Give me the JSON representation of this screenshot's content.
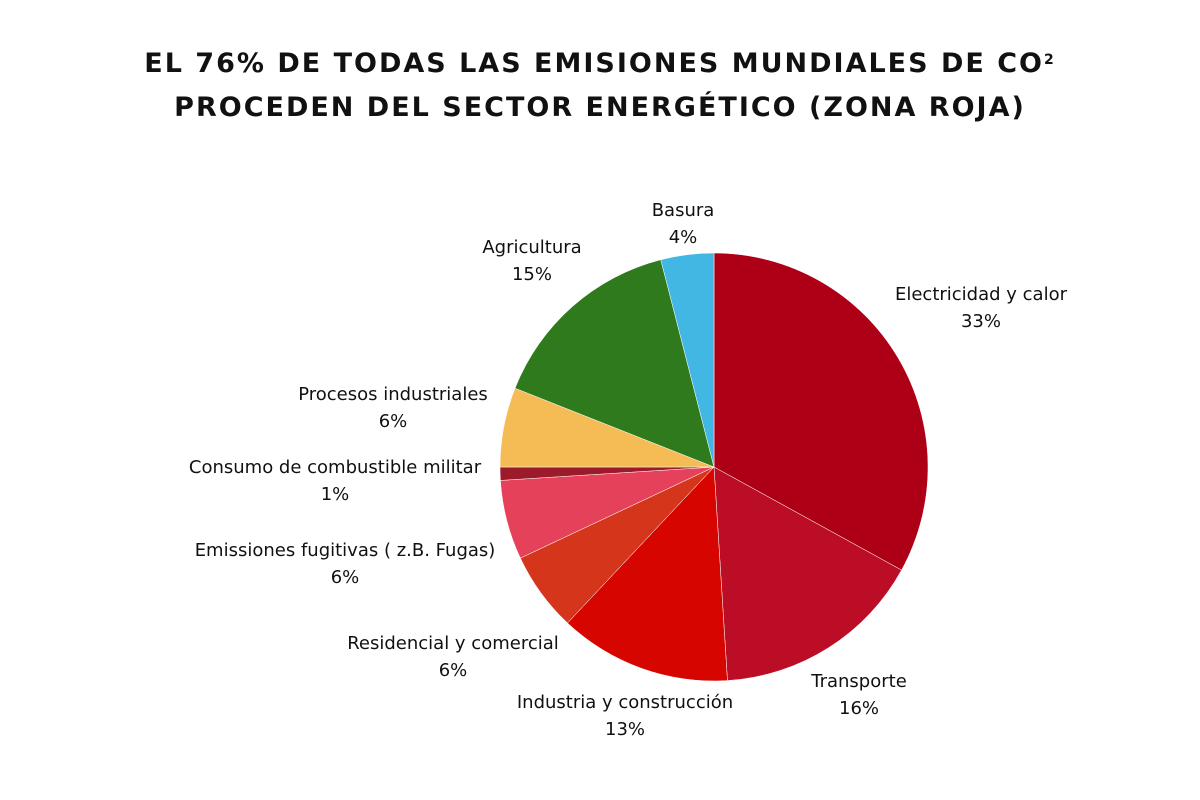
{
  "chart_data": {
    "type": "pie",
    "title": "EL 76% DE TODAS LAS EMISIONES MUNDIALES DE CO",
    "title_superscript": "2",
    "title_line2": "PROCEDEN DEL SECTOR ENERGÉTICO (ZONA ROJA)",
    "slices": [
      {
        "label": "Electricidad y calor",
        "value": 33,
        "value_label": "33%",
        "color": "#ad0016"
      },
      {
        "label": "Transporte",
        "value": 16,
        "value_label": "16%",
        "color": "#bc0d26"
      },
      {
        "label": "Industria y construcción",
        "value": 13,
        "value_label": "13%",
        "color": "#d60500"
      },
      {
        "label": "Residencial y comercial",
        "value": 6,
        "value_label": "6%",
        "color": "#d4351b"
      },
      {
        "label": "Emissiones fugitivas ( z.B. Fugas)",
        "value": 6,
        "value_label": "6%",
        "color": "#e6415a"
      },
      {
        "label": "Consumo de combustible militar",
        "value": 1,
        "value_label": "1%",
        "color": "#9c1b2b"
      },
      {
        "label": "Procesos industriales",
        "value": 6,
        "value_label": "6%",
        "color": "#f5bc56"
      },
      {
        "label": "Agricultura",
        "value": 15,
        "value_label": "15%",
        "color": "#2e7a1c"
      },
      {
        "label": "Basura",
        "value": 4,
        "value_label": "4%",
        "color": "#43b7e3"
      }
    ],
    "start_angle": "top",
    "direction": "clockwise",
    "legend": "none"
  }
}
